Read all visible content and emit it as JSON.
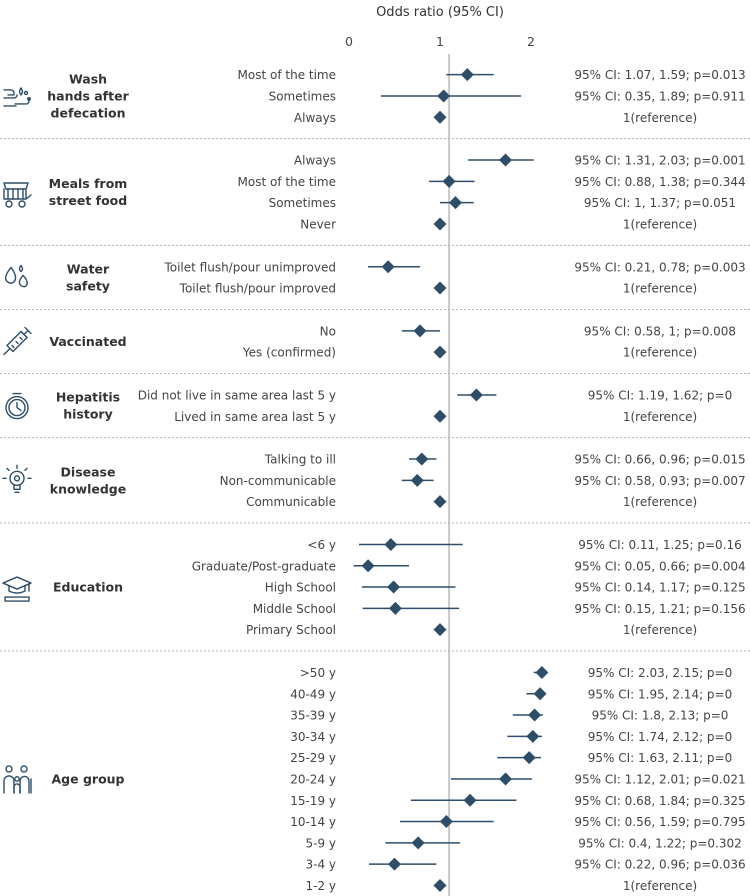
{
  "chart_data": {
    "type": "forest",
    "xlabel": "Odds ratio (95% CI)",
    "xlim": [
      0,
      2.5
    ],
    "xticks": [
      0,
      1,
      2
    ],
    "reference_line": 1.1,
    "colors": {
      "marker": "#2e4d68",
      "reference_line": "#c8c8c8",
      "separator": "#b0b0b0",
      "icon": "#2e4d68"
    },
    "groups": [
      {
        "name": "Wash hands after defecation",
        "name_lines": [
          "Wash",
          "hands after",
          "defecation"
        ],
        "icon": "hand-washing-icon",
        "rows": [
          {
            "label": "Most of the time",
            "or": 1.3,
            "lo": 1.07,
            "hi": 1.59,
            "ci_text": "95% CI: 1.07, 1.59; p=0.013"
          },
          {
            "label": "Sometimes",
            "or": 1.04,
            "lo": 0.35,
            "hi": 1.89,
            "ci_text": "95% CI: 0.35, 1.89; p=0.911"
          },
          {
            "label": "Always",
            "or": 1,
            "ci_text": "1(reference)"
          }
        ]
      },
      {
        "name": "Meals from street food",
        "name_lines": [
          "Meals from",
          "street food"
        ],
        "icon": "food-cart-icon",
        "rows": [
          {
            "label": "Always",
            "or": 1.72,
            "lo": 1.31,
            "hi": 2.03,
            "ci_text": "95% CI: 1.31, 2.03; p=0.001"
          },
          {
            "label": "Most of the time",
            "or": 1.1,
            "lo": 0.88,
            "hi": 1.38,
            "ci_text": "95% CI: 0.88, 1.38; p=0.344"
          },
          {
            "label": "Sometimes",
            "or": 1.17,
            "lo": 1,
            "hi": 1.37,
            "ci_text": "95% CI: 1, 1.37; p=0.051"
          },
          {
            "label": "Never",
            "or": 1,
            "ci_text": "1(reference)"
          }
        ]
      },
      {
        "name": "Water safety",
        "name_lines": [
          "Water",
          "safety"
        ],
        "icon": "water-drops-icon",
        "rows": [
          {
            "label": "Toilet flush/pour unimproved",
            "or": 0.43,
            "lo": 0.21,
            "hi": 0.78,
            "ci_text": "95% CI: 0.21, 0.78; p=0.003"
          },
          {
            "label": "Toilet flush/pour improved",
            "or": 1,
            "ci_text": "1(reference)"
          }
        ]
      },
      {
        "name": "Vaccinated",
        "name_lines": [
          "Vaccinated"
        ],
        "icon": "syringe-icon",
        "rows": [
          {
            "label": "No",
            "or": 0.78,
            "lo": 0.58,
            "hi": 1,
            "ci_text": "95% CI: 0.58, 1; p=0.008"
          },
          {
            "label": "Yes (confirmed)",
            "or": 1,
            "ci_text": "1(reference)"
          }
        ]
      },
      {
        "name": "Hepatitis history",
        "name_lines": [
          "Hepatitis",
          "history"
        ],
        "icon": "clock-history-icon",
        "rows": [
          {
            "label": "Did not live in same area last 5 y",
            "or": 1.4,
            "lo": 1.19,
            "hi": 1.62,
            "ci_text": "95% CI: 1.19, 1.62; p=0"
          },
          {
            "label": "Lived in same area last 5 y",
            "or": 1,
            "ci_text": "1(reference)"
          }
        ]
      },
      {
        "name": "Disease knowledge",
        "name_lines": [
          "Disease",
          "knowledge"
        ],
        "icon": "lightbulb-icon",
        "rows": [
          {
            "label": "Talking to ill",
            "or": 0.8,
            "lo": 0.66,
            "hi": 0.96,
            "ci_text": "95% CI: 0.66, 0.96; p=0.015"
          },
          {
            "label": "Non-communicable",
            "or": 0.75,
            "lo": 0.58,
            "hi": 0.93,
            "ci_text": "95% CI: 0.58, 0.93; p=0.007"
          },
          {
            "label": "Communicable",
            "or": 1,
            "ci_text": "1(reference)"
          }
        ]
      },
      {
        "name": "Education",
        "name_lines": [
          "Education"
        ],
        "icon": "graduation-icon",
        "rows": [
          {
            "label": "<6 y",
            "or": 0.46,
            "lo": 0.11,
            "hi": 1.25,
            "ci_text": "95% CI: 0.11, 1.25; p=0.16"
          },
          {
            "label": "Graduate/Post-graduate",
            "or": 0.21,
            "lo": 0.05,
            "hi": 0.66,
            "ci_text": "95% CI: 0.05, 0.66; p=0.004"
          },
          {
            "label": "High School",
            "or": 0.49,
            "lo": 0.14,
            "hi": 1.17,
            "ci_text": "95% CI: 0.14, 1.17; p=0.125"
          },
          {
            "label": "Middle School",
            "or": 0.51,
            "lo": 0.15,
            "hi": 1.21,
            "ci_text": "95% CI: 0.15, 1.21; p=0.156"
          },
          {
            "label": "Primary School",
            "or": 1,
            "ci_text": "1(reference)"
          }
        ]
      },
      {
        "name": "Age group",
        "name_lines": [
          "Age group"
        ],
        "icon": "family-icon",
        "rows": [
          {
            "label": ">50 y",
            "or": 2.12,
            "lo": 2.03,
            "hi": 2.15,
            "ci_text": "95% CI: 2.03, 2.15; p=0"
          },
          {
            "label": "40-49 y",
            "or": 2.1,
            "lo": 1.95,
            "hi": 2.14,
            "ci_text": "95% CI: 1.95, 2.14; p=0"
          },
          {
            "label": "35-39 y",
            "or": 2.04,
            "lo": 1.8,
            "hi": 2.13,
            "ci_text": "95% CI: 1.8, 2.13; p=0"
          },
          {
            "label": "30-34 y",
            "or": 2.02,
            "lo": 1.74,
            "hi": 2.12,
            "ci_text": "95% CI: 1.74, 2.12; p=0"
          },
          {
            "label": "25-29 y",
            "or": 1.98,
            "lo": 1.63,
            "hi": 2.11,
            "ci_text": "95% CI: 1.63, 2.11; p=0"
          },
          {
            "label": "20-24 y",
            "or": 1.72,
            "lo": 1.12,
            "hi": 2.01,
            "ci_text": "95% CI: 1.12, 2.01; p=0.021"
          },
          {
            "label": "15-19 y",
            "or": 1.33,
            "lo": 0.68,
            "hi": 1.84,
            "ci_text": "95% CI: 0.68, 1.84; p=0.325"
          },
          {
            "label": "10-14 y",
            "or": 1.07,
            "lo": 0.56,
            "hi": 1.59,
            "ci_text": "95% CI: 0.56, 1.59; p=0.795"
          },
          {
            "label": "5-9 y",
            "or": 0.76,
            "lo": 0.4,
            "hi": 1.22,
            "ci_text": "95% CI: 0.4, 1.22; p=0.302"
          },
          {
            "label": "3-4 y",
            "or": 0.5,
            "lo": 0.22,
            "hi": 0.96,
            "ci_text": "95% CI: 0.22, 0.96; p=0.036"
          },
          {
            "label": "1-2 y",
            "or": 1,
            "ci_text": "1(reference)"
          }
        ]
      }
    ]
  }
}
